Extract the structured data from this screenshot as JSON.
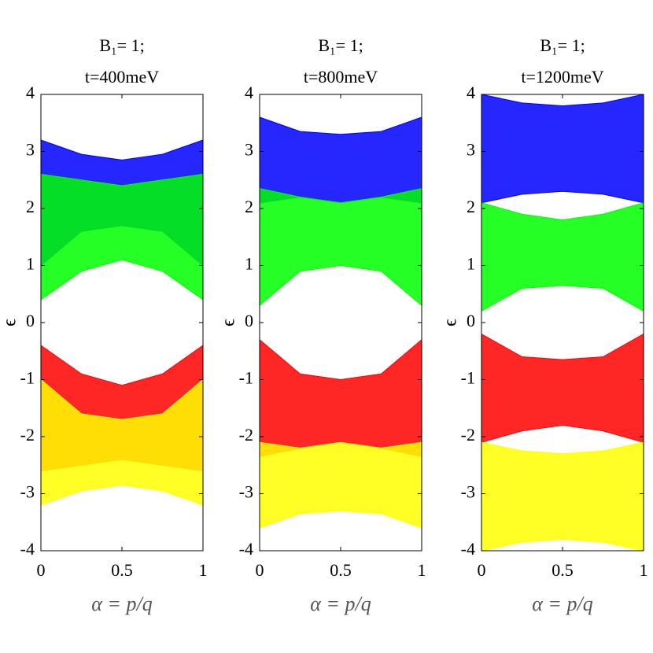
{
  "chart_data": [
    {
      "type": "band",
      "title": "B₁= 1;",
      "subtitle": "t=400meV",
      "x_label": "α = p/q",
      "y_label": "ϵ",
      "x": [
        0,
        0.25,
        0.5,
        0.75,
        1
      ],
      "xlim": [
        0,
        1
      ],
      "xticks": [
        0,
        0.5,
        1
      ],
      "ylim": [
        -4,
        4
      ],
      "yticks": [
        -4,
        -3,
        -2,
        -1,
        0,
        1,
        2,
        3,
        4
      ],
      "series": [
        {
          "color": "#0000ff",
          "upper": [
            3.2,
            2.95,
            2.85,
            2.95,
            3.2
          ],
          "lower": [
            1.0,
            1.6,
            1.7,
            1.6,
            1.0
          ]
        },
        {
          "color": "#00ff00",
          "upper": [
            2.6,
            2.5,
            2.4,
            2.5,
            2.6
          ],
          "lower": [
            0.4,
            0.9,
            1.1,
            0.9,
            0.4
          ]
        },
        {
          "color": "#ff0000",
          "upper": [
            -0.4,
            -0.9,
            -1.1,
            -0.9,
            -0.4
          ],
          "lower": [
            -2.6,
            -2.5,
            -2.4,
            -2.5,
            -2.6
          ]
        },
        {
          "color": "#ffff00",
          "upper": [
            -1.0,
            -1.6,
            -1.7,
            -1.6,
            -1.0
          ],
          "lower": [
            -3.2,
            -2.95,
            -2.85,
            -2.95,
            -3.2
          ]
        }
      ]
    },
    {
      "type": "band",
      "title": "B₁= 1;",
      "subtitle": "t=800meV",
      "x_label": "α = p/q",
      "y_label": "ϵ",
      "x": [
        0,
        0.25,
        0.5,
        0.75,
        1
      ],
      "xlim": [
        0,
        1
      ],
      "xticks": [
        0,
        0.5,
        1
      ],
      "ylim": [
        -4,
        4
      ],
      "yticks": [
        -4,
        -3,
        -2,
        -1,
        0,
        1,
        2,
        3,
        4
      ],
      "series": [
        {
          "color": "#0000ff",
          "upper": [
            3.6,
            3.35,
            3.3,
            3.35,
            3.6
          ],
          "lower": [
            2.1,
            2.2,
            2.1,
            2.2,
            2.1
          ]
        },
        {
          "color": "#00ff00",
          "upper": [
            2.35,
            2.2,
            2.1,
            2.2,
            2.35
          ],
          "lower": [
            0.3,
            0.9,
            1.0,
            0.9,
            0.3
          ]
        },
        {
          "color": "#ff0000",
          "upper": [
            -0.3,
            -0.9,
            -1.0,
            -0.9,
            -0.3
          ],
          "lower": [
            -2.35,
            -2.2,
            -2.1,
            -2.2,
            -2.35
          ]
        },
        {
          "color": "#ffff00",
          "upper": [
            -2.1,
            -2.2,
            -2.1,
            -2.2,
            -2.1
          ],
          "lower": [
            -3.6,
            -3.35,
            -3.3,
            -3.35,
            -3.6
          ]
        }
      ]
    },
    {
      "type": "band",
      "title": "B₁= 1;",
      "subtitle": "t=1200meV",
      "x_label": "α = p/q",
      "y_label": "ϵ",
      "x": [
        0,
        0.25,
        0.5,
        0.75,
        1
      ],
      "xlim": [
        0,
        1
      ],
      "xticks": [
        0,
        0.5,
        1
      ],
      "ylim": [
        -4,
        4
      ],
      "yticks": [
        -4,
        -3,
        -2,
        -1,
        0,
        1,
        2,
        3,
        4
      ],
      "series": [
        {
          "color": "#0000ff",
          "upper": [
            4.0,
            3.85,
            3.8,
            3.85,
            4.0
          ],
          "lower": [
            2.1,
            2.25,
            2.3,
            2.25,
            2.1
          ]
        },
        {
          "color": "#00ff00",
          "upper": [
            2.1,
            1.9,
            1.8,
            1.9,
            2.1
          ],
          "lower": [
            0.2,
            0.6,
            0.65,
            0.6,
            0.2
          ]
        },
        {
          "color": "#ff0000",
          "upper": [
            -0.2,
            -0.6,
            -0.65,
            -0.6,
            -0.2
          ],
          "lower": [
            -2.1,
            -1.9,
            -1.8,
            -1.9,
            -2.1
          ]
        },
        {
          "color": "#ffff00",
          "upper": [
            -2.1,
            -2.25,
            -2.3,
            -2.25,
            -2.1
          ],
          "lower": [
            -4.0,
            -3.85,
            -3.8,
            -3.85,
            -4.0
          ]
        }
      ]
    }
  ]
}
